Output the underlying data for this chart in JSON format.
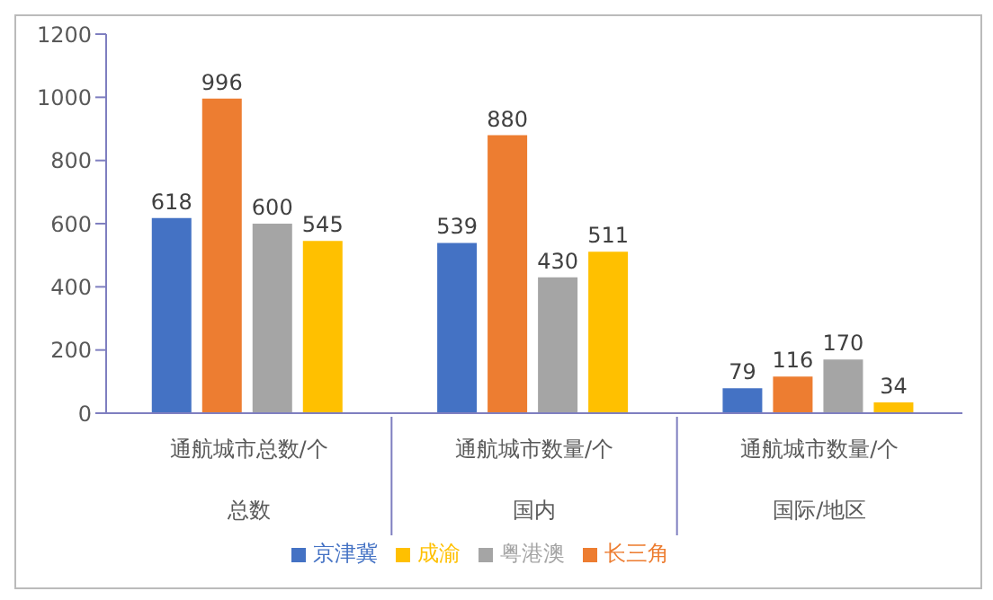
{
  "chart_data": {
    "type": "bar",
    "categories": [
      "通航城市总数/个",
      "通航城市数量/个",
      "通航城市数量/个"
    ],
    "annotations": [
      "总数",
      "国内",
      "国际/地区"
    ],
    "series": [
      {
        "name": "京津冀",
        "color": "#4472c4",
        "values": [
          618,
          539,
          79
        ]
      },
      {
        "name": "长三角",
        "color": "#ed7d31",
        "values": [
          996,
          880,
          116
        ]
      },
      {
        "name": "粤港澳",
        "color": "#a5a5a5",
        "values": [
          600,
          430,
          170
        ]
      },
      {
        "name": "成渝",
        "color": "#ffc000",
        "values": [
          545,
          511,
          34
        ]
      }
    ],
    "ylim": [
      0,
      1200
    ],
    "yticks": [
      0,
      200,
      400,
      600,
      800,
      1000,
      1200
    ],
    "data_labels": true,
    "grid": false,
    "legend": "bottom"
  }
}
